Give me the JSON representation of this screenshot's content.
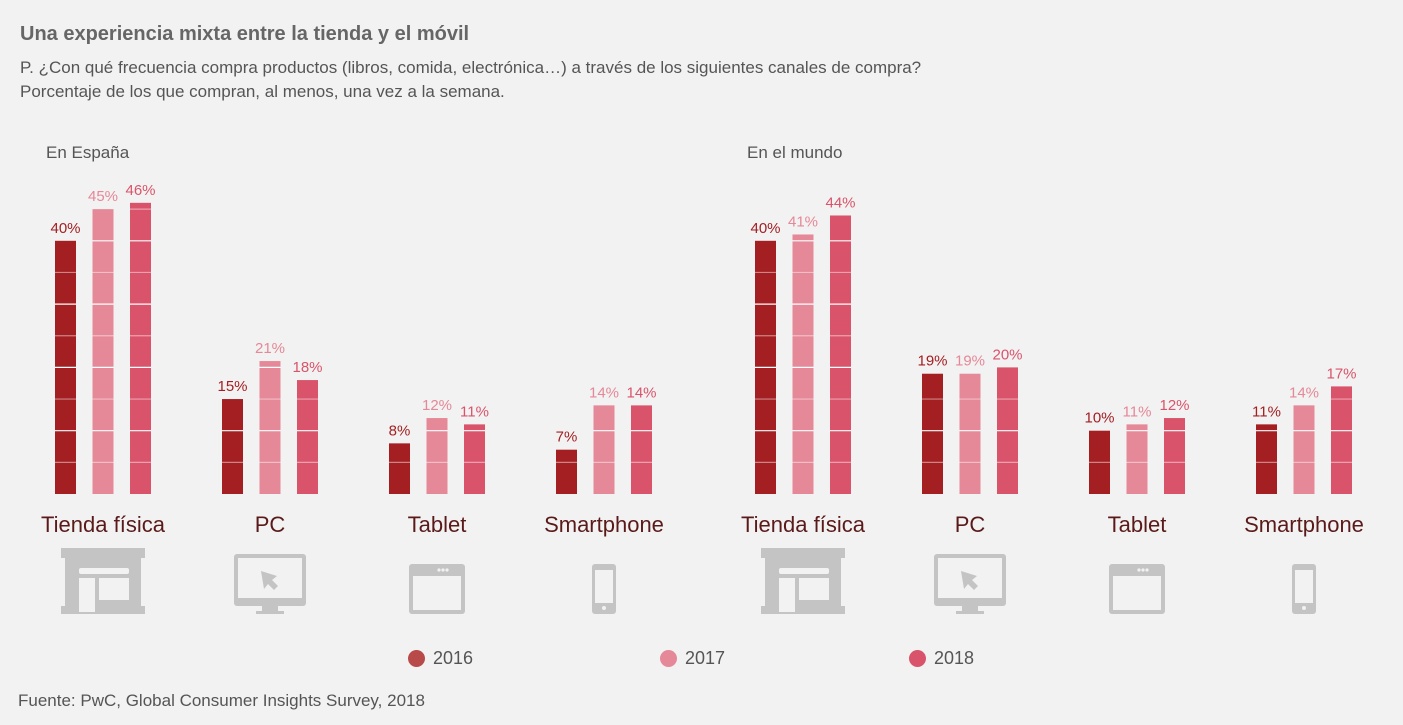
{
  "title": "Una experiencia mixta entre la tienda y el móvil",
  "subtitle_1": "P. ¿Con qué frecuencia compra productos (libros, comida, electrónica…) a través de los siguientes canales de compra?",
  "subtitle_2": "Porcentaje de los que compran, al menos, una vez a la semana.",
  "source": "Fuente: PwC, Global Consumer Insights Survey, 2018",
  "colors": {
    "2016": "#a31f22",
    "2017": "#e58897",
    "2018": "#d9546b",
    "legend_2016": "#b84a4a",
    "category": "#5b1a1a",
    "icon": "#c4c4c4"
  },
  "legend": [
    {
      "label": "2016",
      "color": "#b84a4a"
    },
    {
      "label": "2017",
      "color": "#e58897"
    },
    {
      "label": "2018",
      "color": "#d9546b"
    }
  ],
  "chart_data": [
    {
      "type": "bar",
      "title": "En España",
      "categories": [
        "Tienda física",
        "PC",
        "Tablet",
        "Smartphone"
      ],
      "icons": [
        "store-icon",
        "desktop-icon",
        "tablet-icon",
        "smartphone-icon"
      ],
      "series": [
        {
          "name": "2016",
          "values": [
            40,
            15,
            8,
            7
          ]
        },
        {
          "name": "2017",
          "values": [
            45,
            21,
            12,
            14
          ]
        },
        {
          "name": "2018",
          "values": [
            46,
            18,
            11,
            14
          ]
        }
      ],
      "unit": "%",
      "ylim": [
        0,
        46
      ],
      "grid": false
    },
    {
      "type": "bar",
      "title": "En el mundo",
      "categories": [
        "Tienda física",
        "PC",
        "Tablet",
        "Smartphone"
      ],
      "icons": [
        "store-icon",
        "desktop-icon",
        "tablet-icon",
        "smartphone-icon"
      ],
      "series": [
        {
          "name": "2016",
          "values": [
            40,
            19,
            10,
            11
          ]
        },
        {
          "name": "2017",
          "values": [
            41,
            19,
            11,
            14
          ]
        },
        {
          "name": "2018",
          "values": [
            44,
            20,
            12,
            17
          ]
        }
      ],
      "unit": "%",
      "ylim": [
        0,
        46
      ],
      "grid": false
    }
  ]
}
